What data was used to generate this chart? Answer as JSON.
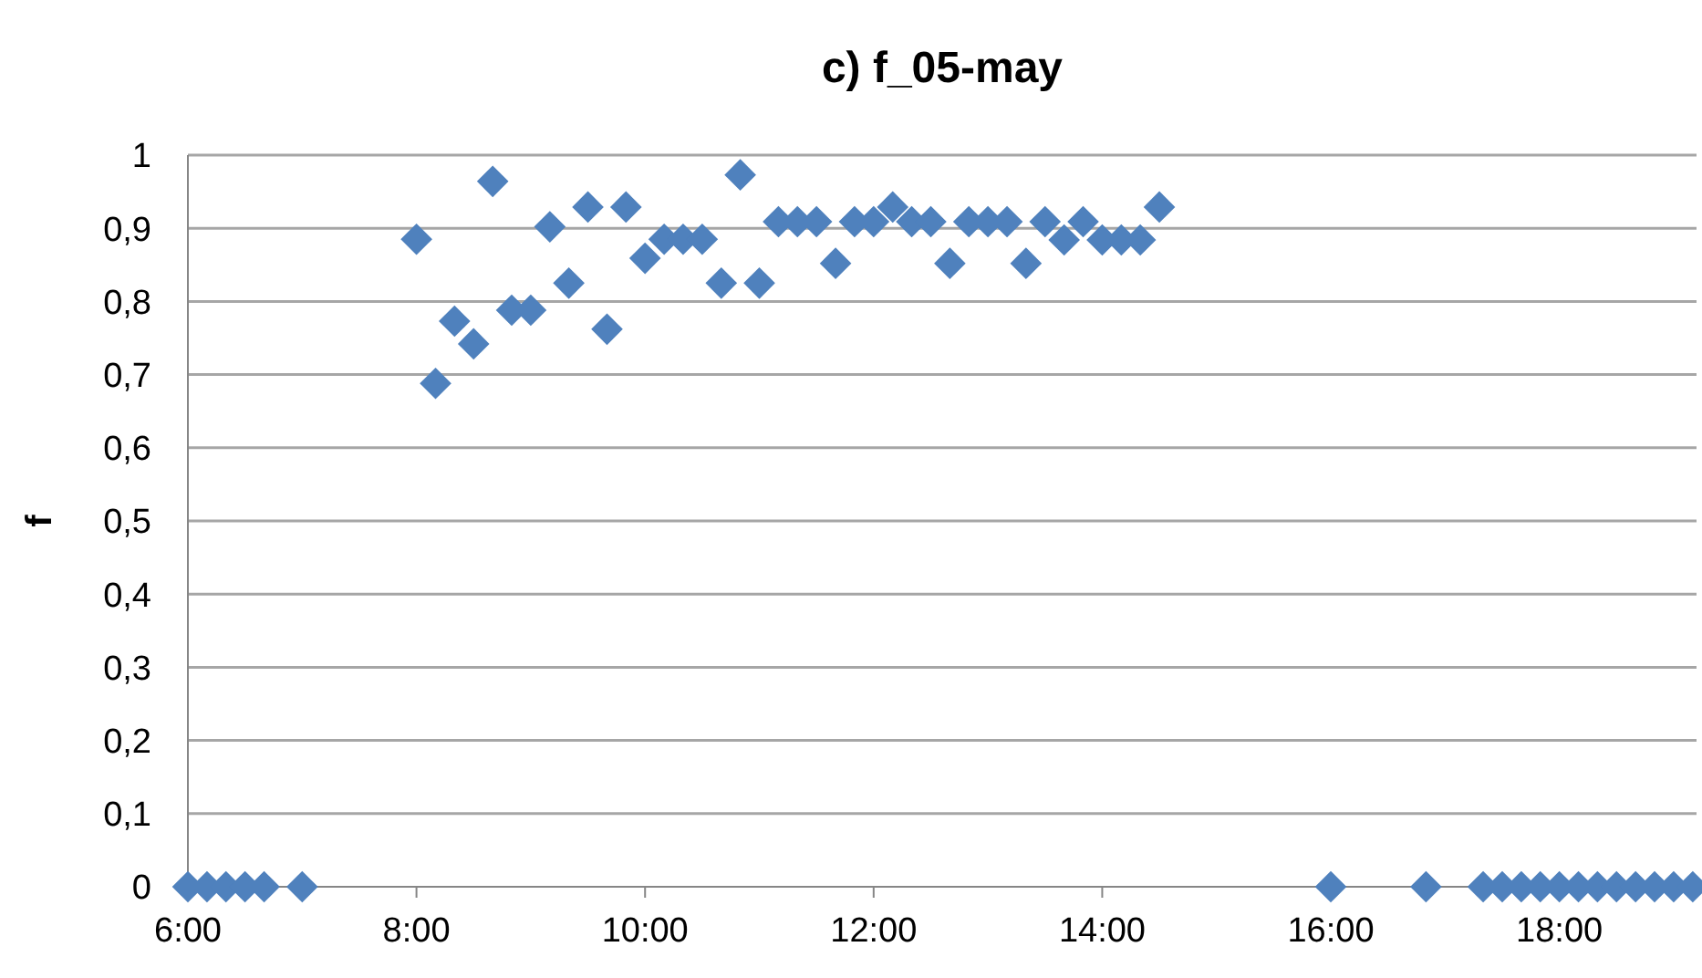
{
  "chart_data": {
    "type": "scatter",
    "title": "c) f_05-may",
    "ylabel": "f",
    "x": [
      6,
      6.167,
      6.333,
      6.5,
      6.667,
      7,
      8,
      8.167,
      8.333,
      8.5,
      8.667,
      8.833,
      9,
      9.167,
      9.333,
      9.5,
      9.667,
      9.833,
      10,
      10.167,
      10.333,
      10.5,
      10.667,
      10.833,
      11,
      11.167,
      11.333,
      11.5,
      11.667,
      11.833,
      12,
      12.167,
      12.333,
      12.5,
      12.667,
      12.833,
      13,
      13.167,
      13.333,
      13.5,
      13.667,
      13.833,
      14,
      14.167,
      14.333,
      14.5,
      16,
      16.833,
      17.333,
      17.5,
      17.667,
      17.833,
      18,
      18.167,
      18.333,
      18.5,
      18.667,
      18.833,
      19,
      19.167
    ],
    "series": [
      {
        "color": "#4f81bd",
        "values": [
          0,
          0,
          0,
          0,
          0,
          0,
          0.885,
          0.688,
          0.773,
          0.742,
          0.964,
          0.788,
          0.788,
          0.902,
          0.825,
          0.929,
          0.762,
          0.929,
          0.859,
          0.885,
          0.885,
          0.885,
          0.825,
          0.973,
          0.825,
          0.909,
          0.909,
          0.909,
          0.852,
          0.909,
          0.909,
          0.929,
          0.909,
          0.909,
          0.852,
          0.909,
          0.909,
          0.909,
          0.852,
          0.909,
          0.884,
          0.909,
          0.884,
          0.884,
          0.884,
          0.929,
          0,
          0,
          0,
          0,
          0,
          0,
          0,
          0,
          0,
          0,
          0,
          0,
          0,
          0
        ]
      }
    ],
    "marker": "diamond",
    "xlim": [
      6,
      19.2
    ],
    "xticks": [
      {
        "value": 6,
        "label": "6:00"
      },
      {
        "value": 8,
        "label": "8:00"
      },
      {
        "value": 10,
        "label": "10:00"
      },
      {
        "value": 12,
        "label": "12:00"
      },
      {
        "value": 14,
        "label": "14:00"
      },
      {
        "value": 16,
        "label": "16:00"
      },
      {
        "value": 18,
        "label": "18:00"
      }
    ],
    "ylim": [
      0,
      1
    ],
    "yticks": [
      {
        "value": 0,
        "label": "0"
      },
      {
        "value": 0.1,
        "label": "0,1"
      },
      {
        "value": 0.2,
        "label": "0,2"
      },
      {
        "value": 0.3,
        "label": "0,3"
      },
      {
        "value": 0.4,
        "label": "0,4"
      },
      {
        "value": 0.5,
        "label": "0,5"
      },
      {
        "value": 0.6,
        "label": "0,6"
      },
      {
        "value": 0.7,
        "label": "0,7"
      },
      {
        "value": 0.8,
        "label": "0,8"
      },
      {
        "value": 0.9,
        "label": "0,9"
      },
      {
        "value": 1,
        "label": "1"
      }
    ],
    "grid": "y"
  }
}
